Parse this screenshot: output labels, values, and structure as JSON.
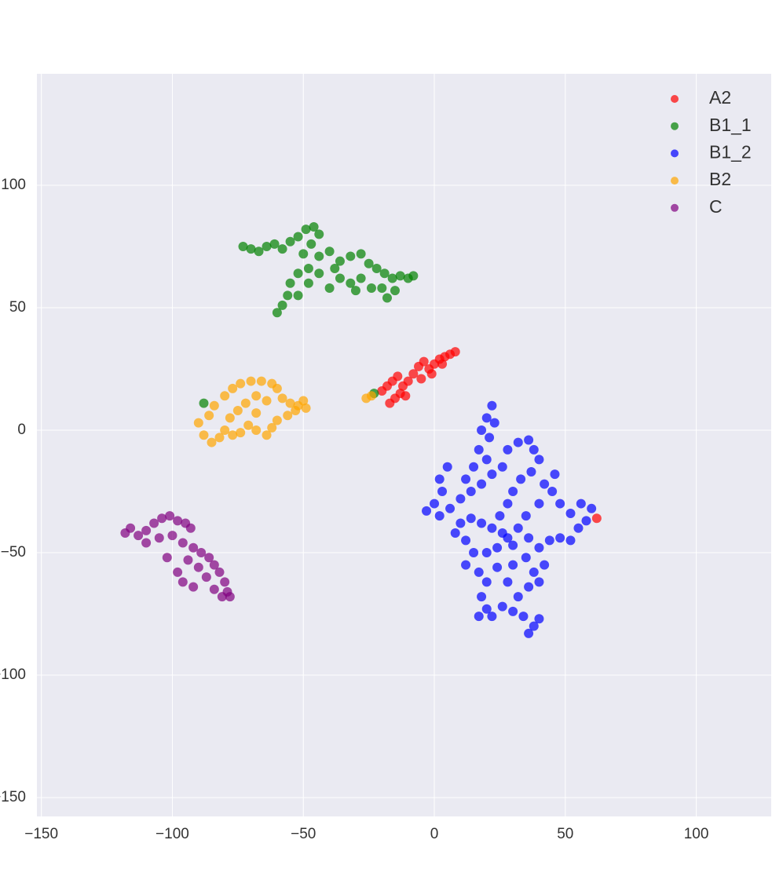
{
  "chart_data": {
    "type": "scatter",
    "xlim": [
      -151.7,
      128.6
    ],
    "ylim": [
      -157.7,
      145.5
    ],
    "xticks": [
      {
        "value": -150,
        "label": "−150"
      },
      {
        "value": -100,
        "label": "−100"
      },
      {
        "value": -50,
        "label": "−50"
      },
      0,
      50,
      100
    ],
    "yticks": [
      {
        "value": -150,
        "label": "−150"
      },
      {
        "value": -100,
        "label": "−100"
      },
      {
        "value": -50,
        "label": "−50"
      },
      0,
      50,
      100
    ],
    "grid": true,
    "legend": "upper right",
    "series": [
      {
        "name": "A2",
        "color": "#ff0000",
        "x": [
          -20,
          -18,
          -16,
          -14,
          -12,
          -15,
          -17,
          -13,
          -10,
          -8,
          -6,
          -4,
          -2,
          0,
          2,
          4,
          6,
          8,
          -5,
          -1,
          3,
          -11,
          62
        ],
        "y": [
          16,
          18,
          20,
          22,
          18,
          13,
          11,
          15,
          20,
          23,
          26,
          28,
          25,
          27,
          29,
          30,
          31,
          32,
          21,
          23,
          27,
          14,
          -36
        ]
      },
      {
        "name": "B1_1",
        "color": "#008000",
        "x": [
          -73,
          -70,
          -67,
          -64,
          -61,
          -58,
          -55,
          -52,
          -49,
          -46,
          -44,
          -47,
          -50,
          -44,
          -40,
          -36,
          -32,
          -28,
          -25,
          -22,
          -19,
          -16,
          -13,
          -10,
          -8,
          -20,
          -18,
          -24,
          -28,
          -32,
          -36,
          -40,
          -44,
          -48,
          -52,
          -55,
          -56,
          -58,
          -60,
          -52,
          -48,
          -38,
          -30,
          -15,
          -88,
          -23
        ],
        "y": [
          75,
          74,
          73,
          75,
          76,
          74,
          77,
          79,
          82,
          83,
          80,
          76,
          72,
          71,
          73,
          69,
          71,
          72,
          68,
          66,
          64,
          62,
          63,
          62,
          63,
          58,
          54,
          58,
          62,
          60,
          62,
          58,
          64,
          66,
          64,
          60,
          55,
          51,
          48,
          55,
          60,
          66,
          57,
          57,
          11,
          15
        ]
      },
      {
        "name": "B1_2",
        "color": "#0000ff",
        "x": [
          22,
          20,
          23,
          18,
          21,
          17,
          20,
          15,
          12,
          5,
          2,
          3,
          0,
          -3,
          2,
          6,
          10,
          14,
          18,
          22,
          26,
          28,
          32,
          36,
          38,
          40,
          37,
          33,
          30,
          28,
          25,
          22,
          18,
          14,
          10,
          8,
          12,
          15,
          12,
          17,
          20,
          18,
          20,
          17,
          22,
          26,
          30,
          34,
          38,
          40,
          36,
          32,
          28,
          24,
          30,
          35,
          38,
          40,
          36,
          42,
          40,
          44,
          48,
          52,
          55,
          58,
          60,
          56,
          52,
          48,
          45,
          42,
          46,
          40,
          35,
          32,
          28,
          24,
          20,
          26,
          36,
          30
        ],
        "y": [
          10,
          5,
          3,
          0,
          -3,
          -8,
          -12,
          -15,
          -20,
          -15,
          -20,
          -25,
          -30,
          -33,
          -35,
          -32,
          -28,
          -25,
          -22,
          -18,
          -15,
          -8,
          -5,
          -4,
          -8,
          -12,
          -17,
          -20,
          -25,
          -30,
          -35,
          -40,
          -38,
          -36,
          -38,
          -42,
          -45,
          -50,
          -55,
          -58,
          -62,
          -68,
          -73,
          -76,
          -76,
          -72,
          -74,
          -76,
          -80,
          -77,
          -83,
          -68,
          -62,
          -56,
          -55,
          -52,
          -58,
          -62,
          -64,
          -55,
          -48,
          -45,
          -44,
          -45,
          -40,
          -37,
          -32,
          -30,
          -34,
          -30,
          -25,
          -22,
          -18,
          -30,
          -35,
          -40,
          -44,
          -48,
          -50,
          -42,
          -44,
          -47
        ]
      },
      {
        "name": "B2",
        "color": "#ffa500",
        "x": [
          -90,
          -88,
          -85,
          -82,
          -86,
          -84,
          -80,
          -77,
          -74,
          -70,
          -66,
          -62,
          -60,
          -58,
          -55,
          -52,
          -50,
          -49,
          -53,
          -56,
          -60,
          -62,
          -64,
          -68,
          -71,
          -74,
          -77,
          -80,
          -78,
          -75,
          -72,
          -68,
          -64,
          -68,
          -26,
          -24
        ],
        "y": [
          3,
          -2,
          -5,
          -3,
          6,
          10,
          14,
          17,
          19,
          20,
          20,
          19,
          17,
          13,
          11,
          10,
          12,
          9,
          8,
          6,
          4,
          1,
          -2,
          0,
          2,
          -1,
          -2,
          0,
          5,
          8,
          11,
          14,
          12,
          7,
          13,
          14
        ]
      },
      {
        "name": "C",
        "color": "#800080",
        "x": [
          -118,
          -116,
          -113,
          -110,
          -107,
          -104,
          -101,
          -98,
          -95,
          -93,
          -110,
          -105,
          -100,
          -96,
          -92,
          -89,
          -86,
          -84,
          -82,
          -80,
          -79,
          -81,
          -84,
          -87,
          -90,
          -94,
          -98,
          -96,
          -92,
          -102,
          -78
        ],
        "y": [
          -42,
          -40,
          -43,
          -41,
          -38,
          -36,
          -35,
          -37,
          -38,
          -40,
          -46,
          -44,
          -43,
          -46,
          -48,
          -50,
          -52,
          -55,
          -58,
          -62,
          -66,
          -68,
          -65,
          -60,
          -56,
          -53,
          -58,
          -62,
          -64,
          -52,
          -68
        ]
      }
    ]
  }
}
